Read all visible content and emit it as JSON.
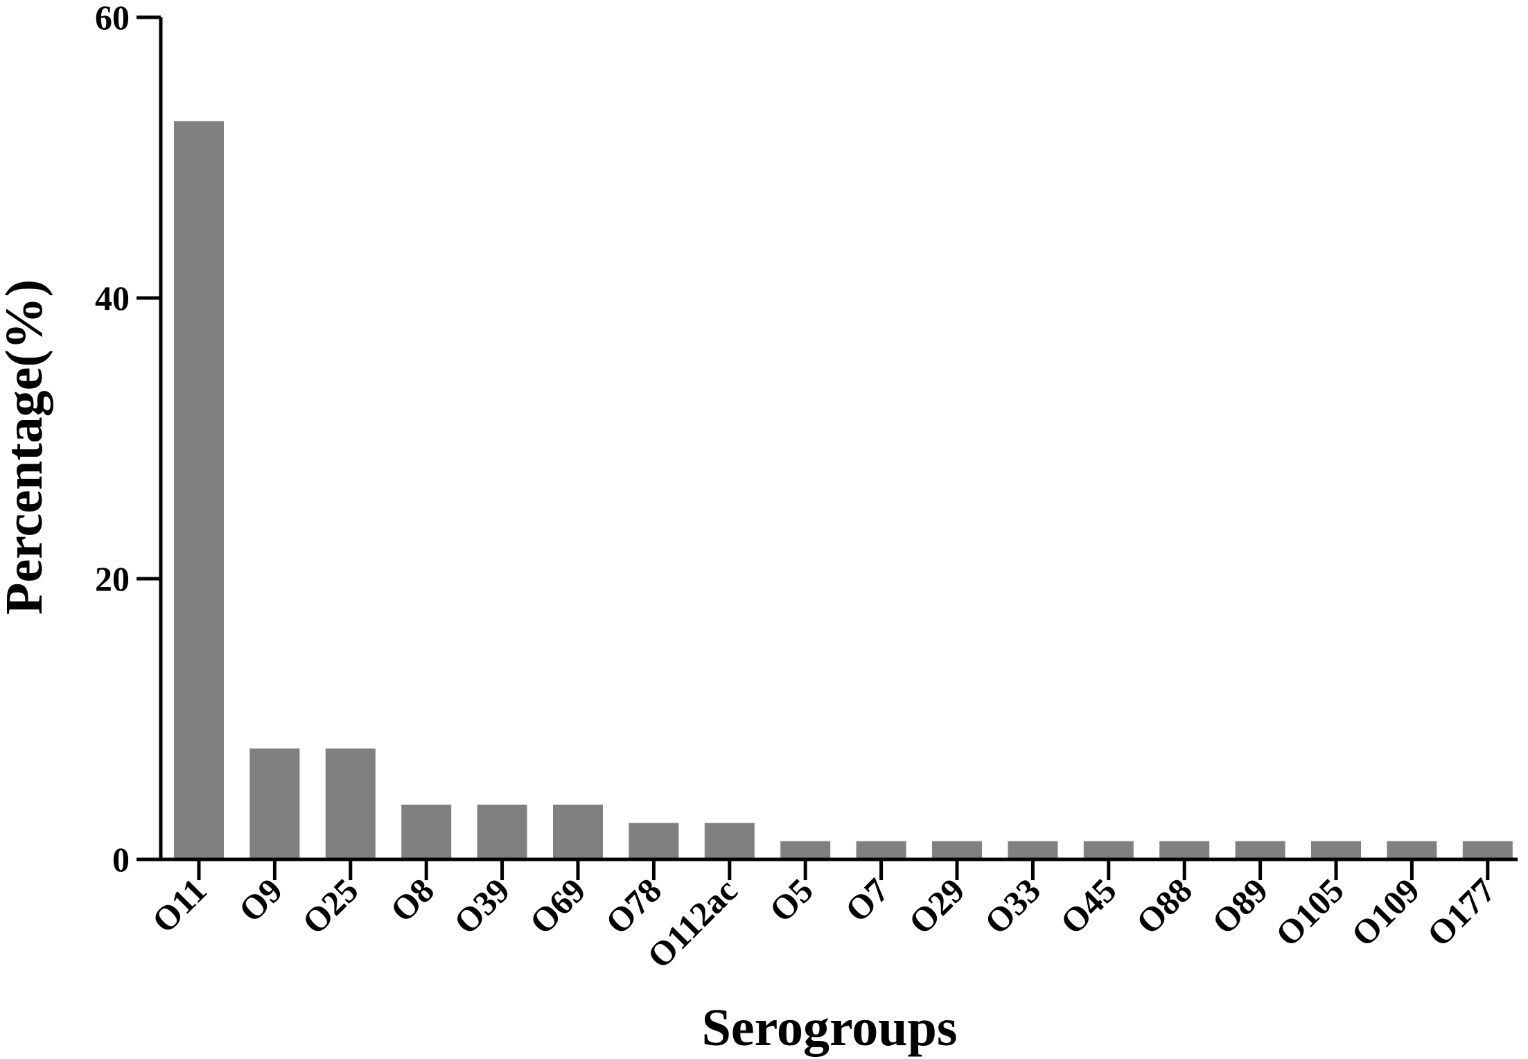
{
  "chart_data": {
    "type": "bar",
    "categories": [
      "O11",
      "O9",
      "O25",
      "O8",
      "O39",
      "O69",
      "O78",
      "O112ac",
      "O5",
      "O7",
      "O29",
      "O33",
      "O45",
      "O88",
      "O89",
      "O105",
      "O109",
      "O177"
    ],
    "values": [
      52.6,
      7.9,
      7.9,
      3.9,
      3.9,
      3.9,
      2.6,
      2.6,
      1.3,
      1.3,
      1.3,
      1.3,
      1.3,
      1.3,
      1.3,
      1.3,
      1.3,
      1.3
    ],
    "xlabel": "Serogroups",
    "ylabel": "Percentage(%)",
    "ylim": [
      0,
      60
    ],
    "yticks": [
      0,
      20,
      40,
      60
    ],
    "grid": false,
    "bar_color": "#808080"
  }
}
